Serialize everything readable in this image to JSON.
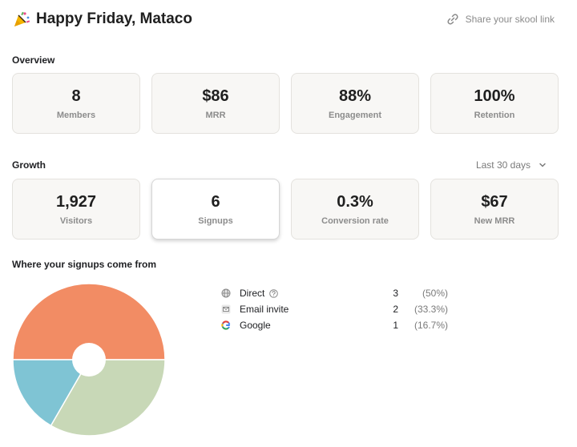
{
  "header": {
    "greeting": "Happy Friday, Mataco",
    "share_label": "Share your skool link",
    "greeting_icon": "party-popper-icon",
    "share_icon": "link-icon"
  },
  "overview": {
    "title": "Overview",
    "cards": [
      {
        "value": "8",
        "label": "Members"
      },
      {
        "value": "$86",
        "label": "MRR"
      },
      {
        "value": "88%",
        "label": "Engagement"
      },
      {
        "value": "100%",
        "label": "Retention"
      }
    ]
  },
  "growth": {
    "title": "Growth",
    "range_label": "Last 30 days",
    "cards": [
      {
        "value": "1,927",
        "label": "Visitors"
      },
      {
        "value": "6",
        "label": "Signups",
        "selected": true
      },
      {
        "value": "0.3%",
        "label": "Conversion rate"
      },
      {
        "value": "$67",
        "label": "New MRR"
      }
    ]
  },
  "signups": {
    "title": "Where your signups come from",
    "sources": [
      {
        "name": "Direct",
        "count": "3",
        "pct": "(50%)",
        "icon": "globe-icon",
        "color": "#f28c64"
      },
      {
        "name": "Email invite",
        "count": "2",
        "pct": "(33.3%)",
        "icon": "mail-icon",
        "color": "#c8d8b7"
      },
      {
        "name": "Google",
        "count": "1",
        "pct": "(16.7%)",
        "icon": "google-icon",
        "color": "#7fc4d4"
      }
    ]
  },
  "chart_data": {
    "type": "pie",
    "categories": [
      "Direct",
      "Email invite",
      "Google"
    ],
    "values": [
      3,
      2,
      1
    ],
    "colors": [
      "#f28c64",
      "#c8d8b7",
      "#7fc4d4"
    ],
    "title": "Where your signups come from"
  }
}
